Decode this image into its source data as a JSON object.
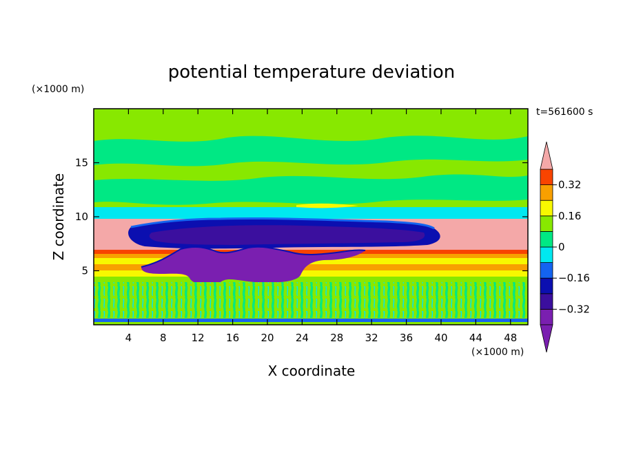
{
  "chart_data": {
    "type": "heatmap",
    "title": "potential temperature deviation",
    "xlabel": "X coordinate",
    "ylabel": "Z coordinate",
    "x_unit": "(×1000 m)",
    "y_unit": "(×1000 m)",
    "time_label": "t=561600 s",
    "xlim": [
      0,
      50
    ],
    "ylim": [
      0,
      20
    ],
    "x_ticks": [
      4,
      8,
      12,
      16,
      20,
      24,
      28,
      32,
      36,
      40,
      44,
      48
    ],
    "y_ticks": [
      5,
      10,
      15
    ],
    "colorbar": {
      "levels": [
        -0.4,
        -0.32,
        -0.24,
        -0.16,
        -0.08,
        0,
        0.08,
        0.16,
        0.24,
        0.32,
        0.4
      ],
      "tick_values": [
        -0.32,
        -0.16,
        0,
        0.16,
        0.32
      ],
      "tick_labels": [
        "−0.32",
        "−0.16",
        "0",
        "0.16",
        "0.32"
      ],
      "colors": [
        "#7a1fb0",
        "#3b0f9e",
        "#0b0fb0",
        "#1464f0",
        "#00e8f0",
        "#00e884",
        "#88e800",
        "#f8f800",
        "#f8a000",
        "#f84400",
        "#f2f2f2",
        "#f4a8a8"
      ],
      "extend": "both"
    },
    "bands": [
      {
        "z": [
          0.2,
          4.2
        ],
        "value": 0.05
      },
      {
        "z": [
          4.2,
          5.0
        ],
        "value": 0.2
      },
      {
        "z": [
          5.0,
          5.8
        ],
        "value": 0.3
      },
      {
        "z": [
          5.8,
          6.6
        ],
        "value": 0.2
      },
      {
        "z": [
          6.6,
          7.0
        ],
        "value": 0.36
      },
      {
        "z": [
          7.0,
          10.0
        ],
        "value": 0.45
      },
      {
        "z": [
          10.0,
          11.0
        ],
        "value": -0.1
      },
      {
        "z": [
          11.0,
          20.0
        ],
        "value": 0.05
      }
    ],
    "anomalies": [
      {
        "name": "upper cold layer",
        "x": [
          5,
          42
        ],
        "z": [
          7.2,
          10.2
        ],
        "value": -0.36
      },
      {
        "name": "lower cold plume",
        "x": [
          7,
          30
        ],
        "z": [
          3.6,
          7.2
        ],
        "value": -0.45
      }
    ]
  }
}
